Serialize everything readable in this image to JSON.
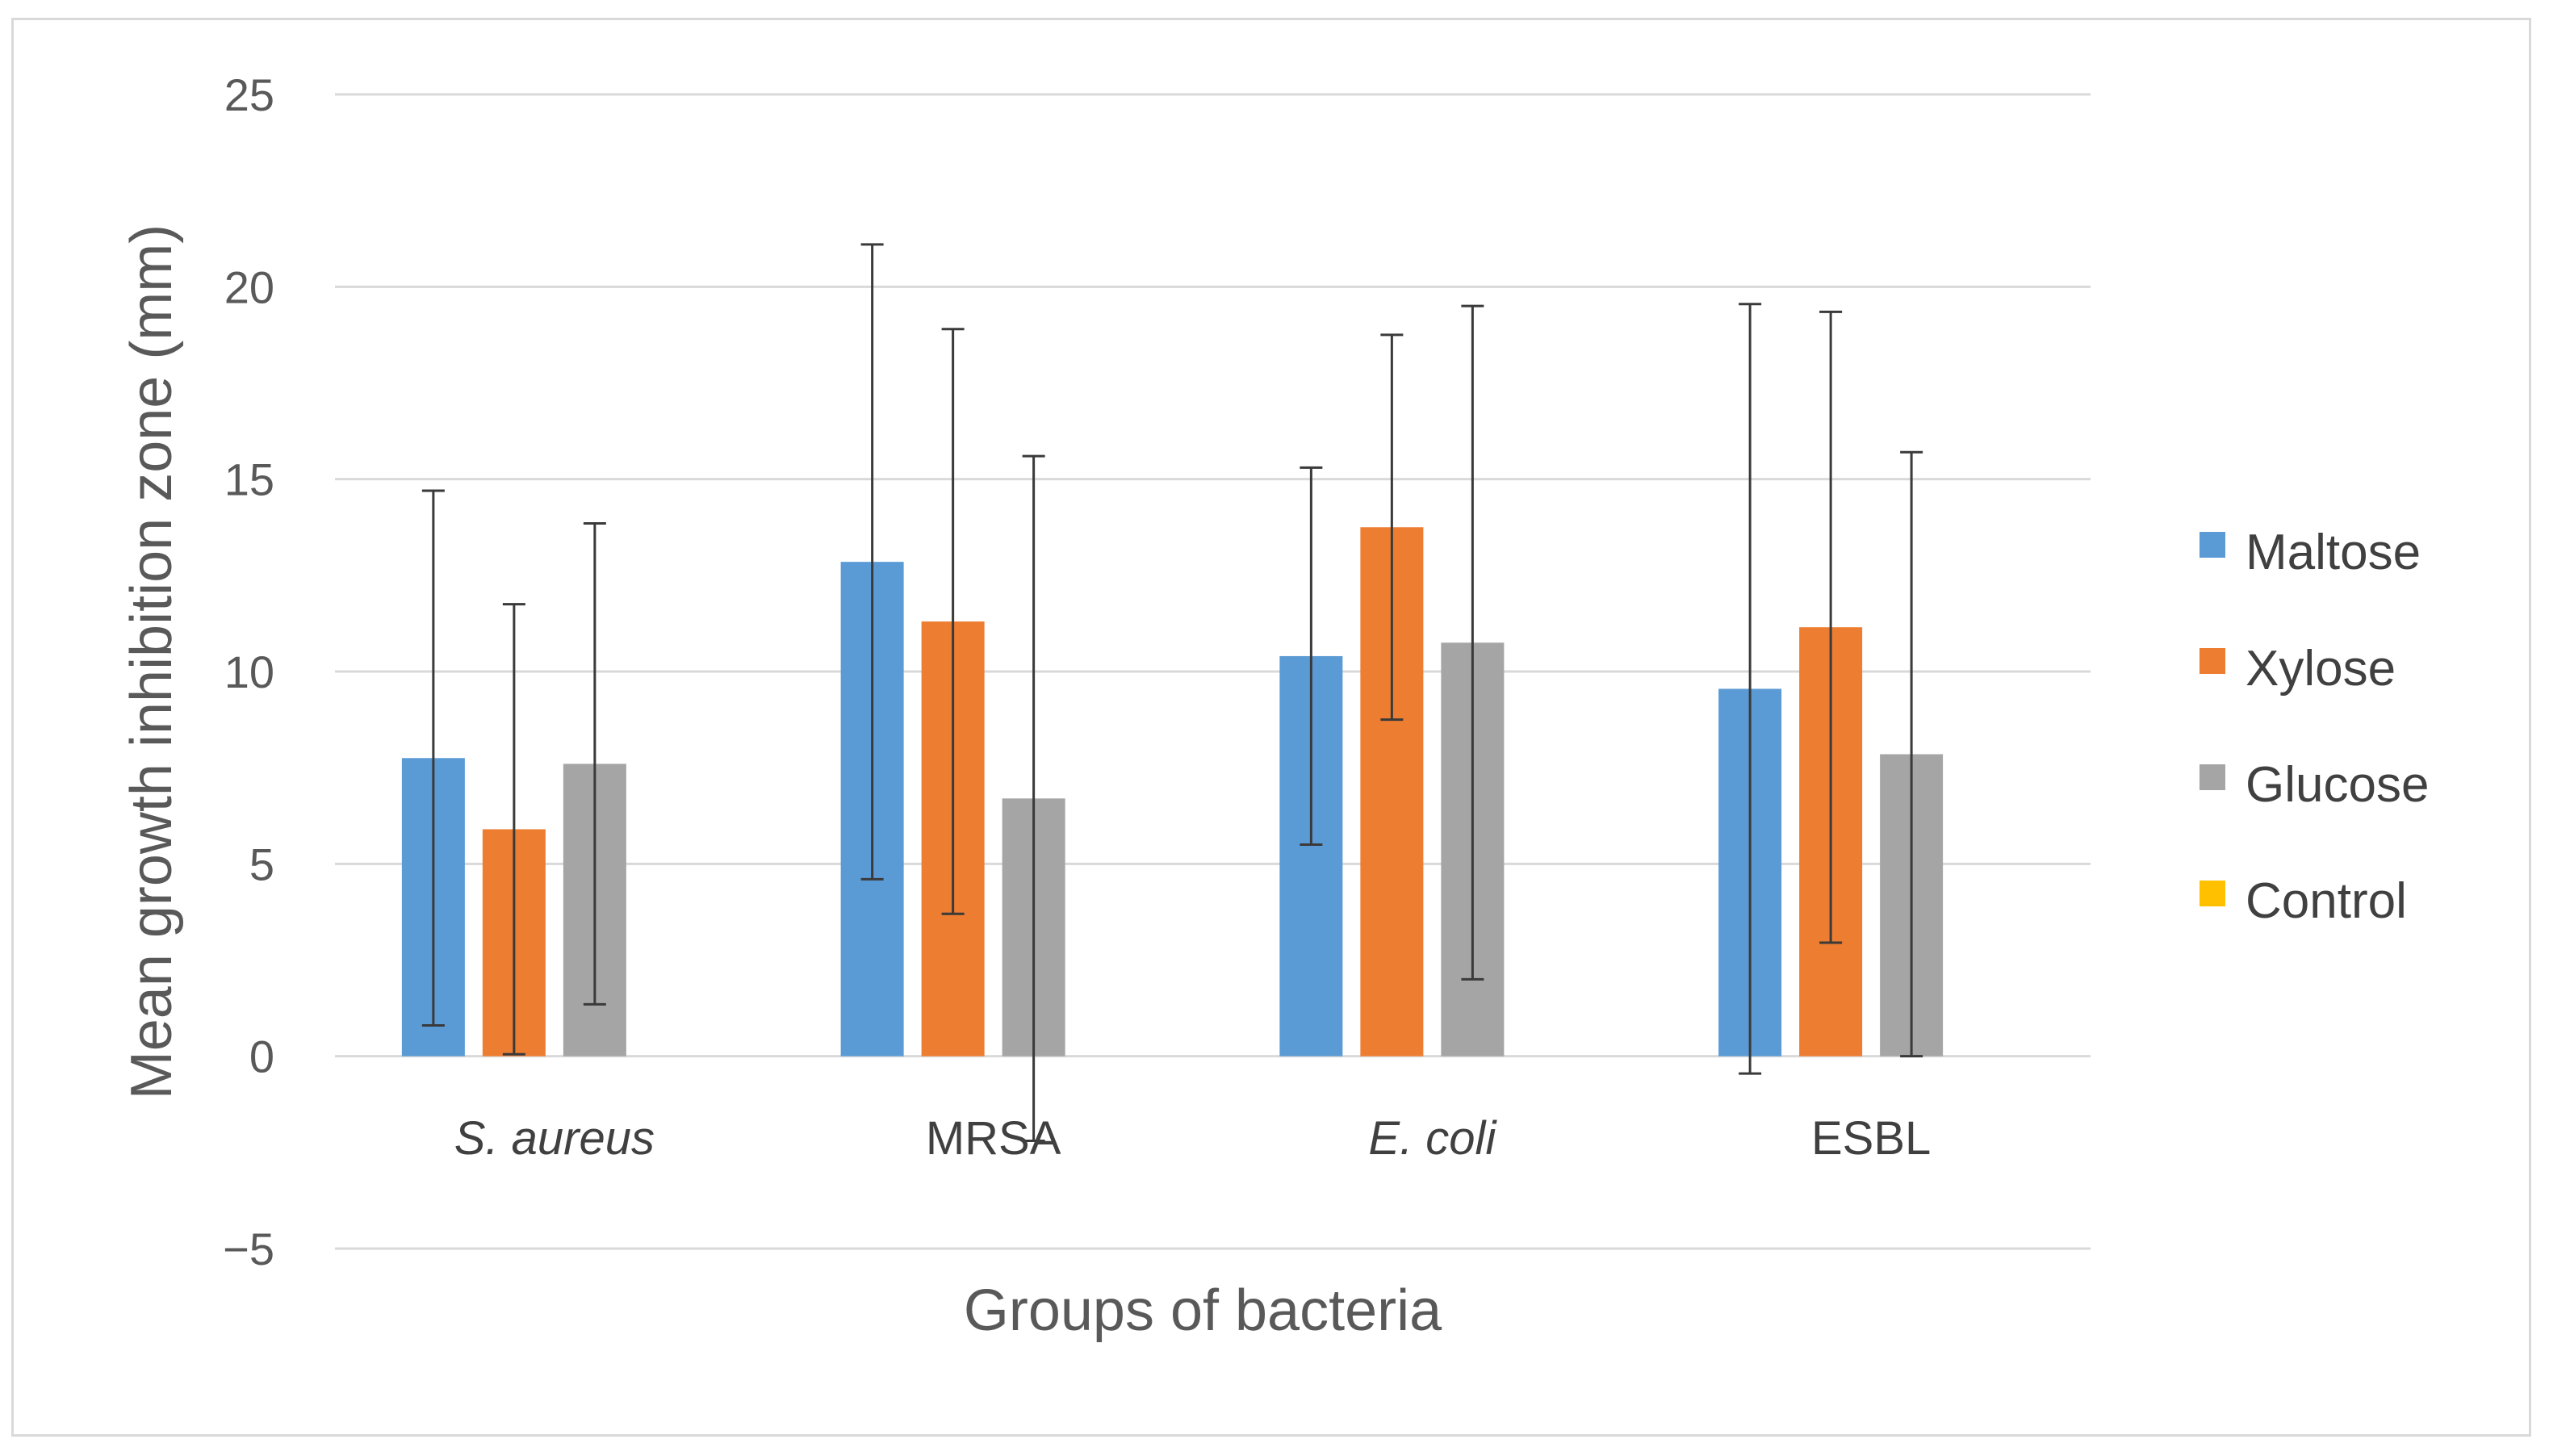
{
  "chart_data": {
    "type": "bar",
    "title": "",
    "xlabel": "Groups of bacteria",
    "ylabel": "Mean growth inhibition zone (mm)",
    "ylim": [
      -5,
      25
    ],
    "yticks": [
      -5,
      0,
      5,
      10,
      15,
      20,
      25
    ],
    "ytick_labels": [
      "−5",
      "0",
      "5",
      "10",
      "15",
      "20",
      "25"
    ],
    "grid": true,
    "legend_position": "right",
    "categories": [
      "S. aureus",
      "MRSA",
      "E. coli",
      "ESBL"
    ],
    "category_italic": [
      true,
      false,
      true,
      false
    ],
    "series": [
      {
        "name": "Maltose",
        "color": "#5b9bd5",
        "values": [
          7.75,
          12.85,
          10.4,
          9.55
        ],
        "error": [
          6.95,
          8.25,
          4.9,
          10.0
        ]
      },
      {
        "name": "Xylose",
        "color": "#ed7d31",
        "values": [
          5.9,
          11.3,
          13.75,
          11.15
        ],
        "error": [
          5.85,
          7.6,
          5.0,
          8.2
        ]
      },
      {
        "name": "Glucose",
        "color": "#a5a5a5",
        "values": [
          7.6,
          6.7,
          10.75,
          7.85
        ],
        "error": [
          6.25,
          8.9,
          8.75,
          7.85
        ]
      },
      {
        "name": "Control",
        "color": "#ffc000",
        "values": [
          0,
          0,
          0,
          0
        ],
        "error": [
          0,
          0,
          0,
          0
        ]
      }
    ]
  }
}
